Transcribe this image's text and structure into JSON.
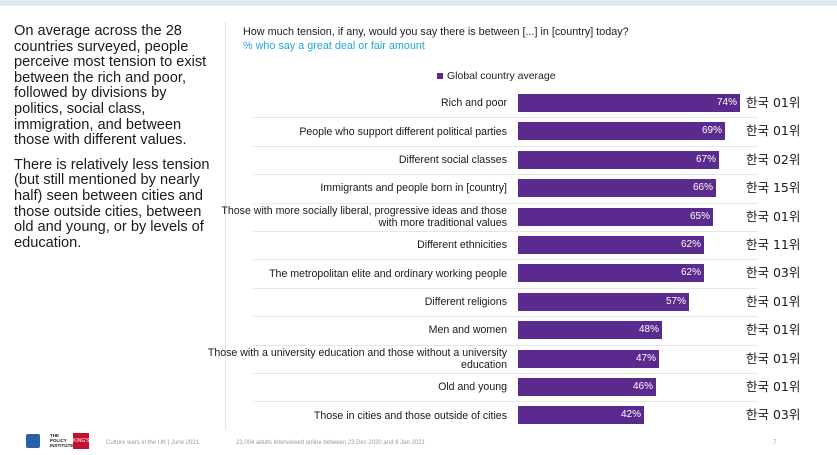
{
  "summary": {
    "paragraph1": "On average across the 28 countries surveyed, people perceive most tension to exist between the rich and poor, followed by divisions by politics, social class, immigration, and between those with different values.",
    "paragraph2": "There is relatively less tension (but still mentioned by nearly half) seen between cities and those outside cities, between old and young, or by levels of education."
  },
  "chart_data": {
    "type": "bar",
    "orientation": "horizontal",
    "title": "How much tension, if any, would you say there is between [...] in [country] today?",
    "subtitle": "% who say a great deal or fair amount",
    "legend": [
      "Global country average"
    ],
    "legend_position": "top",
    "xlim": [
      0,
      100
    ],
    "grid": false,
    "colors": {
      "bar": "#5b2a8f",
      "subtitle": "#1fa8d8"
    },
    "categories": [
      "Rich and poor",
      "People who support different political parties",
      "Different social classes",
      "Immigrants and people born in [country]",
      "Those with more socially liberal, progressive ideas and those with more traditional values",
      "Different ethnicities",
      "The metropolitan elite and ordinary working people",
      "Different religions",
      "Men and women",
      "Those with a university education and those without a university education",
      "Old and young",
      "Those in cities and those outside of cities"
    ],
    "series": [
      {
        "name": "Global country average",
        "values": [
          74,
          69,
          67,
          66,
          65,
          62,
          62,
          57,
          48,
          47,
          46,
          42
        ]
      }
    ],
    "value_labels": [
      "74%",
      "69%",
      "67%",
      "66%",
      "65%",
      "62%",
      "62%",
      "57%",
      "48%",
      "47%",
      "46%",
      "42%"
    ],
    "annotations": [
      "한국 01위",
      "한국 01위",
      "한국 02위",
      "한국 15위",
      "한국 01위",
      "한국 11위",
      "한국 03위",
      "한국 01위",
      "한국 01위",
      "한국 01위",
      "한국 01위",
      "한국 03위"
    ]
  },
  "footer": {
    "logo_text": "THE POLICY INSTITUTE",
    "logo_badge": "KING'S",
    "source": "Culture wars in the UK | June 2021",
    "note": "23,004 adults interviewed online between 23 Dec 2020 and 8 Jan 2021",
    "page_number": "7"
  }
}
